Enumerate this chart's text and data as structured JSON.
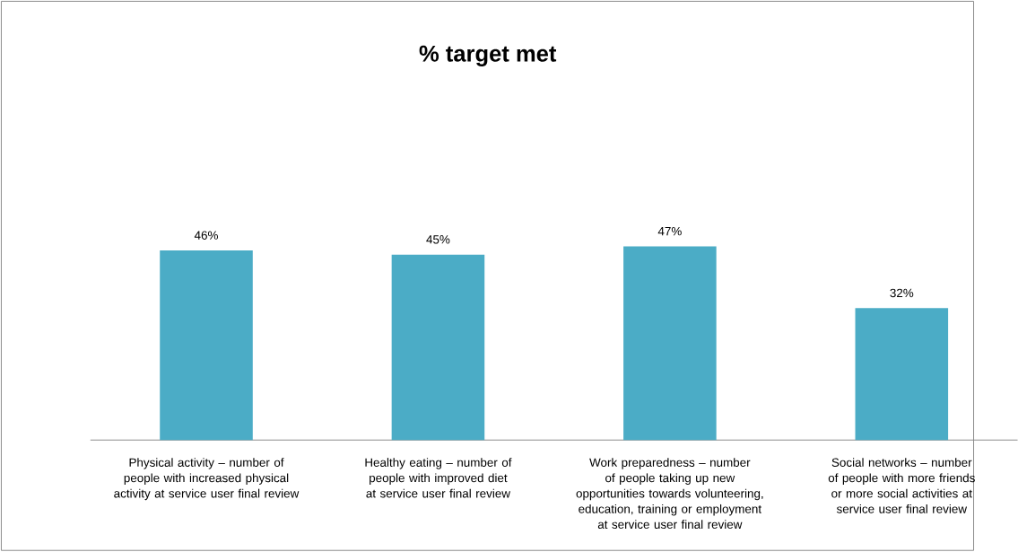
{
  "chart_data": {
    "type": "bar",
    "title": "% target met",
    "categories": [
      "Physical activity – number of people with increased physical activity at service user final review",
      "Healthy eating – number of people with improved diet at service user final review",
      "Work preparedness – number of people taking up new opportunities towards volunteering, education, training or employment at service user final review",
      "Social networks – number of people with more friends or more social activities at service user final review"
    ],
    "values": [
      46,
      45,
      47,
      32
    ],
    "value_labels": [
      "46%",
      "45%",
      "47%",
      "32%"
    ],
    "color": "#4bacc6"
  }
}
